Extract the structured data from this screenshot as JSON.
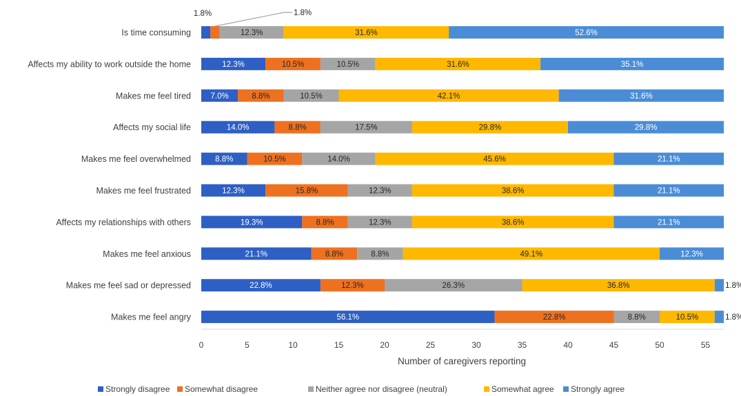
{
  "chart_data": {
    "type": "bar",
    "orientation": "horizontal",
    "stacked": true,
    "xlabel": "Number of caregivers reporting",
    "xlim": [
      0,
      57
    ],
    "xticks": [
      0,
      5,
      10,
      15,
      20,
      25,
      30,
      35,
      40,
      45,
      50,
      55
    ],
    "grid": false,
    "legend_position": "bottom",
    "categories": [
      "Is time consuming",
      "Affects my ability to work outside the home",
      "Makes me feel tired",
      "Affects my social life",
      "Makes me feel overwhelmed",
      "Makes me feel frustrated",
      "Affects my relationships with others",
      "Makes me feel anxious",
      "Makes me feel sad or depressed",
      "Makes me feel angry"
    ],
    "series": [
      {
        "name": "Strongly disagree",
        "color": "#2E5FC4",
        "values": [
          1,
          7,
          4,
          8,
          5,
          7,
          11,
          12,
          13,
          32
        ],
        "labels": [
          "1.8%",
          "12.3%",
          "7.0%",
          "14.0%",
          "8.8%",
          "12.3%",
          "19.3%",
          "21.1%",
          "22.8%",
          "56.1%"
        ]
      },
      {
        "name": "Somewhat disagree",
        "color": "#ED7120",
        "values": [
          1,
          6,
          5,
          5,
          6,
          9,
          5,
          5,
          7,
          13
        ],
        "labels": [
          "1.8%",
          "10.5%",
          "8.8%",
          "8.8%",
          "10.5%",
          "15.8%",
          "8.8%",
          "8.8%",
          "12.3%",
          "22.8%"
        ]
      },
      {
        "name": "Neither agree nor disagree (neutral)",
        "color": "#A5A5A5",
        "values": [
          7,
          6,
          6,
          10,
          8,
          7,
          7,
          5,
          15,
          5
        ],
        "labels": [
          "12.3%",
          "10.5%",
          "10.5%",
          "17.5%",
          "14.0%",
          "12.3%",
          "12.3%",
          "8.8%",
          "26.3%",
          "8.8%"
        ]
      },
      {
        "name": "Somewhat agree",
        "color": "#FFB800",
        "values": [
          18,
          18,
          24,
          17,
          26,
          22,
          22,
          28,
          21,
          6
        ],
        "labels": [
          "31.6%",
          "31.6%",
          "42.1%",
          "29.8%",
          "45.6%",
          "38.6%",
          "38.6%",
          "49.1%",
          "36.8%",
          "10.5%"
        ]
      },
      {
        "name": "Strongly agree",
        "color": "#4A8DD6",
        "values": [
          30,
          20,
          18,
          17,
          12,
          12,
          12,
          7,
          1,
          1
        ],
        "labels": [
          "52.6%",
          "35.1%",
          "31.6%",
          "29.8%",
          "21.1%",
          "21.1%",
          "21.1%",
          "12.3%",
          "1.8%",
          "1.8%"
        ]
      }
    ]
  }
}
